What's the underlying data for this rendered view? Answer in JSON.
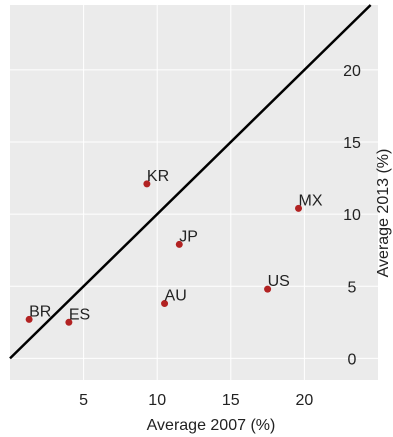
{
  "chart_data": {
    "type": "scatter",
    "title": "",
    "xlabel": "Average 2007 (%)",
    "ylabel": "Average 2013 (%)",
    "xlim": [
      0,
      25
    ],
    "ylim": [
      -1.5,
      24.5
    ],
    "x_ticks": [
      5,
      10,
      15,
      20
    ],
    "y_ticks": [
      0,
      5,
      10,
      15,
      20
    ],
    "grid": true,
    "reference_line": "y = x",
    "colors": {
      "panel_background": "#ebebeb",
      "grid": "#ffffff",
      "point": "#b22222",
      "reference_line": "#000000"
    },
    "points": [
      {
        "label": "KR",
        "x": 9.3,
        "y": 12.1
      },
      {
        "label": "MX",
        "x": 19.6,
        "y": 10.4
      },
      {
        "label": "JP",
        "x": 11.5,
        "y": 7.9
      },
      {
        "label": "US",
        "x": 17.5,
        "y": 4.8
      },
      {
        "label": "AU",
        "x": 10.5,
        "y": 3.8
      },
      {
        "label": "BR",
        "x": 1.3,
        "y": 2.7
      },
      {
        "label": "ES",
        "x": 4.0,
        "y": 2.5
      }
    ]
  }
}
